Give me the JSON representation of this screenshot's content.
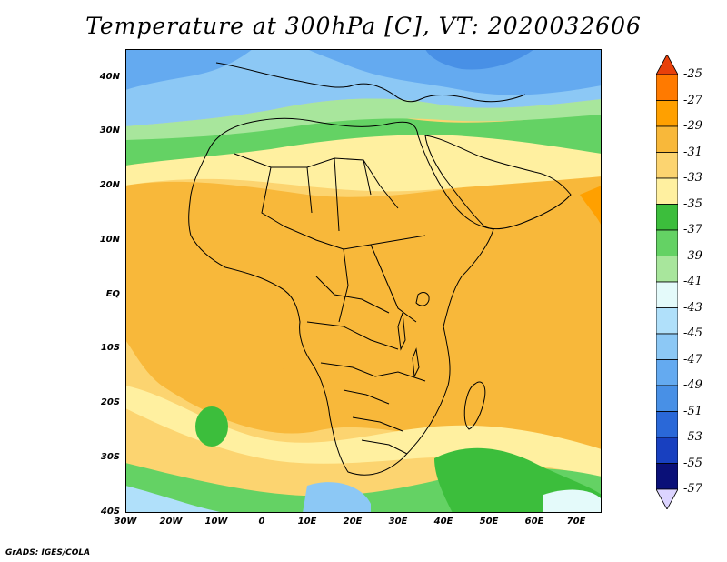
{
  "title": "Temperature at 300hPa [C], VT: 2020032606",
  "credit": "GrADS: IGES/COLA",
  "lat_labels": [
    "40N",
    "30N",
    "20N",
    "10N",
    "EQ",
    "10S",
    "20S",
    "30S",
    "40S"
  ],
  "lon_labels": [
    "30W",
    "20W",
    "10W",
    "0",
    "10E",
    "20E",
    "30E",
    "40E",
    "50E",
    "60E",
    "70E"
  ],
  "colorbar": {
    "labels": [
      "-25",
      "-27",
      "-29",
      "-31",
      "-33",
      "-35",
      "-37",
      "-39",
      "-41",
      "-43",
      "-45",
      "-47",
      "-49",
      "-51",
      "-53",
      "-55",
      "-57"
    ],
    "colors": [
      "#e8400a",
      "#ff7a00",
      "#ffa000",
      "#f8b83a",
      "#fcd470",
      "#fff0a0",
      "#3cbe3c",
      "#64d264",
      "#a8e69c",
      "#e4fafa",
      "#b0e0fa",
      "#8cc8f5",
      "#64aaf0",
      "#4890e6",
      "#2a68d8",
      "#1840c0",
      "#0a1078",
      "#dcd4ff"
    ],
    "top_color": "#e8400a",
    "bottom_color": "#dcd4ff"
  },
  "field_colors": {
    "orange": "#f8b83a",
    "light_orange": "#fcd470",
    "pale_yellow": "#fff0a0",
    "green": "#3cbe3c",
    "light_green": "#64d264",
    "pale_green": "#a8e69c",
    "cyan": "#e4fafa",
    "light_blue": "#b0e0fa",
    "blue": "#8cc8f5",
    "mid_blue": "#64aaf0",
    "dark_blue": "#4890e6"
  }
}
